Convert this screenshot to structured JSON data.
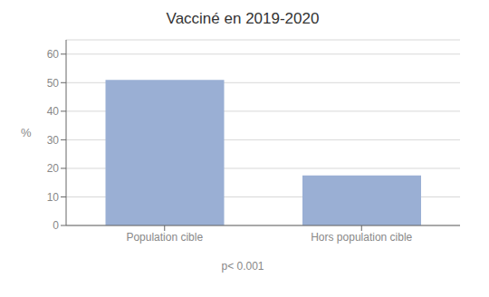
{
  "chart_data": {
    "type": "bar",
    "title": "Vacciné en 2019-2020",
    "categories": [
      "Population cible",
      "Hors population cible"
    ],
    "values": [
      51,
      17.5
    ],
    "color": "#9aafd4",
    "ylabel": "%",
    "ylim": [
      0,
      65
    ],
    "yticks": [
      0,
      10,
      20,
      30,
      40,
      50,
      60
    ],
    "annotation": "p< 0.001",
    "grid": true
  }
}
